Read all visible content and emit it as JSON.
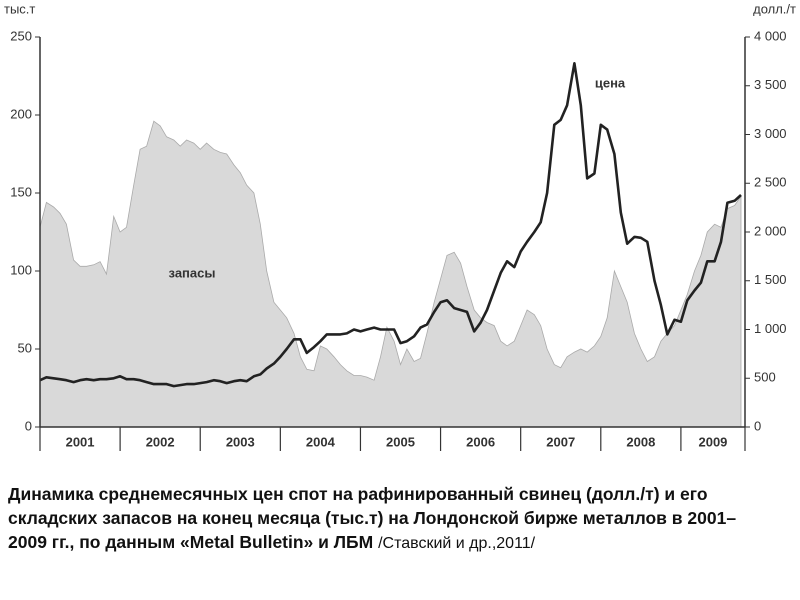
{
  "chart_data": {
    "type": "area-line",
    "caption": "Динамика среднемесячных цен спот на рафинированный свинец (долл./т) и его складских запасов на конец месяца (тыс.т) на Лондонской бирже металлов в 2001–2009 гг., по данным «Metal Bulletin» и ЛБМ",
    "source": "/Ставский и др.,2011/",
    "y_label": "тыс.т",
    "y2_label": "долл./т",
    "x": [
      2001.0,
      2001.08,
      2001.17,
      2001.25,
      2001.33,
      2001.42,
      2001.5,
      2001.58,
      2001.67,
      2001.75,
      2001.83,
      2001.92,
      2002.0,
      2002.08,
      2002.17,
      2002.25,
      2002.33,
      2002.42,
      2002.5,
      2002.58,
      2002.67,
      2002.75,
      2002.83,
      2002.92,
      2003.0,
      2003.08,
      2003.17,
      2003.25,
      2003.33,
      2003.42,
      2003.5,
      2003.58,
      2003.67,
      2003.75,
      2003.83,
      2003.92,
      2004.0,
      2004.08,
      2004.17,
      2004.25,
      2004.33,
      2004.42,
      2004.5,
      2004.58,
      2004.67,
      2004.75,
      2004.83,
      2004.92,
      2005.0,
      2005.08,
      2005.17,
      2005.25,
      2005.33,
      2005.42,
      2005.5,
      2005.58,
      2005.67,
      2005.75,
      2005.83,
      2005.92,
      2006.0,
      2006.08,
      2006.17,
      2006.25,
      2006.33,
      2006.42,
      2006.5,
      2006.58,
      2006.67,
      2006.75,
      2006.83,
      2006.92,
      2007.0,
      2007.08,
      2007.17,
      2007.25,
      2007.33,
      2007.42,
      2007.5,
      2007.58,
      2007.67,
      2007.75,
      2007.83,
      2007.92,
      2008.0,
      2008.08,
      2008.17,
      2008.25,
      2008.33,
      2008.42,
      2008.5,
      2008.58,
      2008.67,
      2008.75,
      2008.83,
      2008.92,
      2009.0,
      2009.08,
      2009.17,
      2009.25,
      2009.33,
      2009.42,
      2009.5,
      2009.58,
      2009.67,
      2009.75
    ],
    "series": [
      {
        "name": "запасы",
        "color": "#d9d9d9",
        "axis": "y",
        "kind": "area",
        "values": [
          128,
          144,
          141,
          137,
          130,
          107,
          103,
          103,
          104,
          106,
          98,
          135,
          125,
          128,
          155,
          178,
          180,
          196,
          193,
          186,
          184,
          180,
          184,
          182,
          178,
          182,
          178,
          176,
          175,
          168,
          163,
          155,
          150,
          130,
          100,
          80,
          75,
          70,
          60,
          45,
          37,
          36,
          52,
          50,
          45,
          40,
          36,
          33,
          33,
          32,
          30,
          45,
          64,
          55,
          40,
          50,
          42,
          44,
          60,
          80,
          95,
          110,
          112,
          105,
          90,
          75,
          70,
          67,
          65,
          55,
          52,
          55,
          65,
          75,
          72,
          65,
          50,
          40,
          38,
          45,
          48,
          50,
          48,
          52,
          58,
          70,
          100,
          90,
          80,
          60,
          50,
          42,
          45,
          55,
          60,
          65,
          75,
          85,
          100,
          110,
          125,
          130,
          128,
          140,
          142,
          148
        ]
      },
      {
        "name": "цена",
        "color": "#222222",
        "axis": "y2",
        "kind": "line",
        "values": [
          480,
          510,
          500,
          490,
          480,
          460,
          480,
          490,
          480,
          490,
          490,
          500,
          520,
          490,
          490,
          480,
          460,
          440,
          440,
          440,
          420,
          430,
          440,
          440,
          450,
          460,
          480,
          470,
          450,
          470,
          480,
          470,
          520,
          540,
          600,
          650,
          720,
          800,
          900,
          900,
          760,
          820,
          880,
          950,
          950,
          950,
          960,
          1000,
          980,
          1000,
          1020,
          1000,
          1000,
          1000,
          860,
          880,
          930,
          1020,
          1050,
          1180,
          1280,
          1300,
          1220,
          1200,
          1180,
          980,
          1070,
          1200,
          1400,
          1580,
          1700,
          1640,
          1800,
          1900,
          2000,
          2100,
          2400,
          3100,
          3150,
          3300,
          3730,
          3300,
          2550,
          2600,
          3100,
          3050,
          2800,
          2200,
          1880,
          1950,
          1940,
          1900,
          1500,
          1250,
          950,
          1100,
          1080,
          1300,
          1400,
          1480,
          1700,
          1700,
          1900,
          2300,
          2320,
          2380
        ]
      }
    ],
    "xlim": [
      2001,
      2009.8
    ],
    "xticks": [
      2001,
      2002,
      2003,
      2004,
      2005,
      2006,
      2007,
      2008,
      2009
    ],
    "ylim": [
      0,
      250
    ],
    "yticks": [
      0,
      50,
      100,
      150,
      200,
      250
    ],
    "y2lim": [
      0,
      4000
    ],
    "y2ticks": [
      0,
      500,
      {
        "value": 1000,
        "label": "1 000"
      },
      {
        "value": 1500,
        "label": "1 500"
      },
      {
        "value": 2000,
        "label": "2 000"
      },
      {
        "value": 2500,
        "label": "2 500"
      },
      {
        "value": 3000,
        "label": "3 000"
      },
      {
        "value": 3500,
        "label": "3 500"
      },
      {
        "value": 4000,
        "label": "4 000"
      }
    ]
  }
}
